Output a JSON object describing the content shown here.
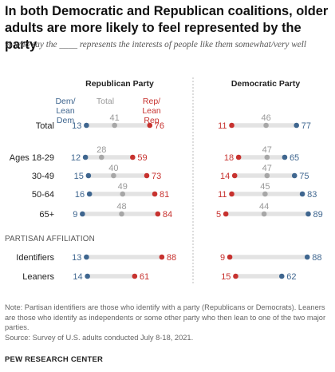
{
  "title": "In both Democratic and Republican coalitions, older adults are more likely to feel represented by the party",
  "subtitle": "% who say the ____ represents the interests of people like them somewhat/very well",
  "note": "Note: Partisan identifiers are those who identify with a party (Republicans or Democrats). Leaners are those who identify as independents or some other party who then lean to one of the two major parties.",
  "source": "Source: Survey of U.S. adults conducted July 8-18, 2021.",
  "brand": "PEW RESEARCH CENTER",
  "colors": {
    "dem": "#3f668f",
    "total": "#a7a7a7",
    "rep": "#c7322f",
    "track": "#e3e3e3"
  },
  "chart_data": [
    {
      "type": "dot",
      "panel_title": "Republican Party",
      "xlim": [
        0,
        100
      ],
      "legend": [
        "Dem/ Lean Dem",
        "Total",
        "Rep/ Lean Rep"
      ],
      "section_label": "PARTISAN AFFILIATION",
      "categories": [
        "Total",
        "Ages 18-29",
        "30-49",
        "50-64",
        "65+",
        "Identifiers",
        "Leaners"
      ],
      "series": [
        {
          "name": "Dem/ Lean Dem",
          "values": [
            13,
            12,
            15,
            16,
            9,
            13,
            14
          ]
        },
        {
          "name": "Total",
          "values": [
            41,
            28,
            40,
            49,
            48,
            null,
            null
          ]
        },
        {
          "name": "Rep/ Lean Rep",
          "values": [
            76,
            59,
            73,
            81,
            84,
            88,
            61
          ]
        }
      ]
    },
    {
      "type": "dot",
      "panel_title": "Democratic Party",
      "xlim": [
        0,
        100
      ],
      "categories": [
        "Total",
        "Ages 18-29",
        "30-49",
        "50-64",
        "65+",
        "Identifiers",
        "Leaners"
      ],
      "series": [
        {
          "name": "Rep/ Lean Rep",
          "values": [
            11,
            18,
            14,
            11,
            5,
            9,
            15
          ]
        },
        {
          "name": "Total",
          "values": [
            46,
            47,
            47,
            45,
            44,
            null,
            null
          ]
        },
        {
          "name": "Dem/ Lean Dem",
          "values": [
            77,
            65,
            75,
            83,
            89,
            88,
            62
          ]
        }
      ]
    }
  ]
}
